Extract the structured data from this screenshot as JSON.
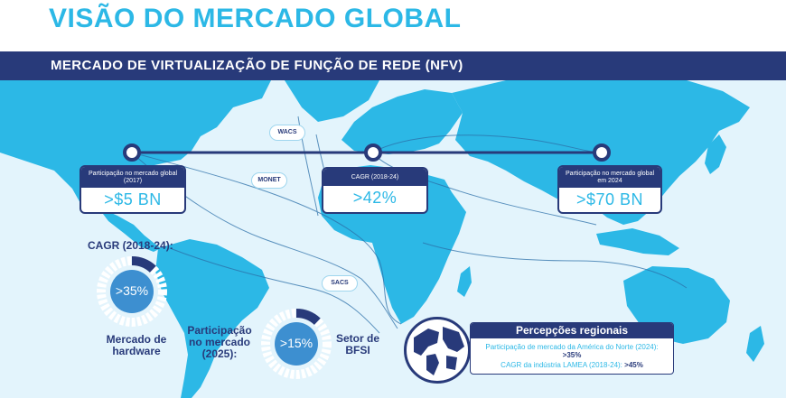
{
  "title": "VISÃO DO MERCADO GLOBAL",
  "banner": "MERCADO DE VIRTUALIZAÇÃO DE FUNÇÃO DE REDE (NFV)",
  "cables": [
    "WACS",
    "MONET",
    "SACS"
  ],
  "stats": [
    {
      "label": "Participação no mercado global (2017)",
      "value": ">$5 BN"
    },
    {
      "label": "CAGR (2018-24)",
      "value": ">42%"
    },
    {
      "label": "Participação no mercado global em 2024",
      "value": ">$70 BN"
    }
  ],
  "hardware": {
    "heading": "CAGR (2018-24):",
    "value": ">35%",
    "caption": "Mercado de hardware"
  },
  "bfsi": {
    "heading": "Participação no mercado (2025):",
    "value": ">15%",
    "caption": "Setor de BFSI"
  },
  "regional": {
    "title": "Percepções regionais",
    "na_label": "Participação de mercado da América do Norte (2024):",
    "na_value": ">35%",
    "lamea_label": "CAGR da indústria LAMEA (2018-24):",
    "lamea_value": ">45%"
  },
  "colors": {
    "navy": "#283a7a",
    "cyan": "#2cb8e6",
    "ocean": "#e3f4fc",
    "land": "#2cb8e6"
  }
}
